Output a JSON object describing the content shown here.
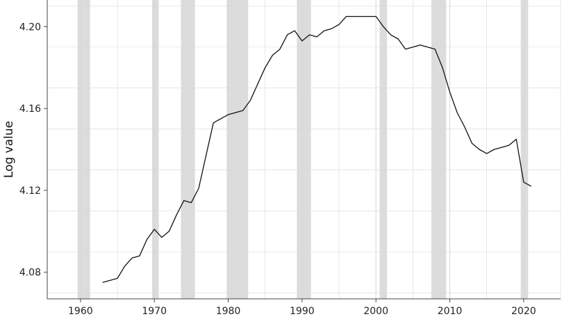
{
  "chart_data": {
    "type": "line",
    "title": "",
    "xlabel": "",
    "ylabel": "Log value",
    "xlim": [
      1955.5,
      2025
    ],
    "ylim": [
      4.067,
      4.213
    ],
    "x_ticks": [
      1960,
      1970,
      1980,
      1990,
      2000,
      2010,
      2020
    ],
    "y_ticks": [
      4.08,
      4.12,
      4.16,
      4.2
    ],
    "y_tick_labels": [
      "4.08",
      "4.12",
      "4.16",
      "4.20"
    ],
    "grid": true,
    "recession_shading": [
      [
        1959.6,
        1961.3
      ],
      [
        1969.7,
        1970.6
      ],
      [
        1973.6,
        1975.5
      ],
      [
        1979.8,
        1982.7
      ],
      [
        1989.3,
        1991.2
      ],
      [
        2000.5,
        2001.5
      ],
      [
        2007.5,
        2009.5
      ],
      [
        2019.6,
        2020.6
      ]
    ],
    "colors": {
      "line": "#111111",
      "shading": "#dcdcdc",
      "grid": "#d8d8d8",
      "axis": "#444444"
    },
    "series": [
      {
        "x": [
          1963,
          1965,
          1966,
          1967,
          1968,
          1969,
          1970,
          1971,
          1972,
          1973,
          1974,
          1975,
          1976,
          1977,
          1978,
          1979,
          1980,
          1981,
          1982,
          1983,
          1984,
          1985,
          1986,
          1987,
          1988,
          1989,
          1990,
          1991,
          1992,
          1993,
          1994,
          1995,
          1996,
          1997,
          1998,
          1999,
          2000,
          2001,
          2002,
          2003,
          2004,
          2005,
          2006,
          2007,
          2008,
          2009,
          2010,
          2011,
          2012,
          2013,
          2014,
          2015,
          2016,
          2017,
          2018,
          2019,
          2020,
          2021
        ],
        "y": [
          4.075,
          4.077,
          4.083,
          4.087,
          4.088,
          4.096,
          4.101,
          4.097,
          4.1,
          4.108,
          4.115,
          4.114,
          4.121,
          4.137,
          4.153,
          4.155,
          4.157,
          4.158,
          4.159,
          4.164,
          4.172,
          4.18,
          4.186,
          4.189,
          4.196,
          4.198,
          4.193,
          4.196,
          4.195,
          4.198,
          4.199,
          4.201,
          4.205,
          4.205,
          4.205,
          4.205,
          4.205,
          4.2,
          4.196,
          4.194,
          4.189,
          4.19,
          4.191,
          4.19,
          4.189,
          4.18,
          4.168,
          4.158,
          4.151,
          4.143,
          4.14,
          4.138,
          4.14,
          4.141,
          4.142,
          4.145,
          4.124,
          4.122
        ]
      }
    ]
  }
}
